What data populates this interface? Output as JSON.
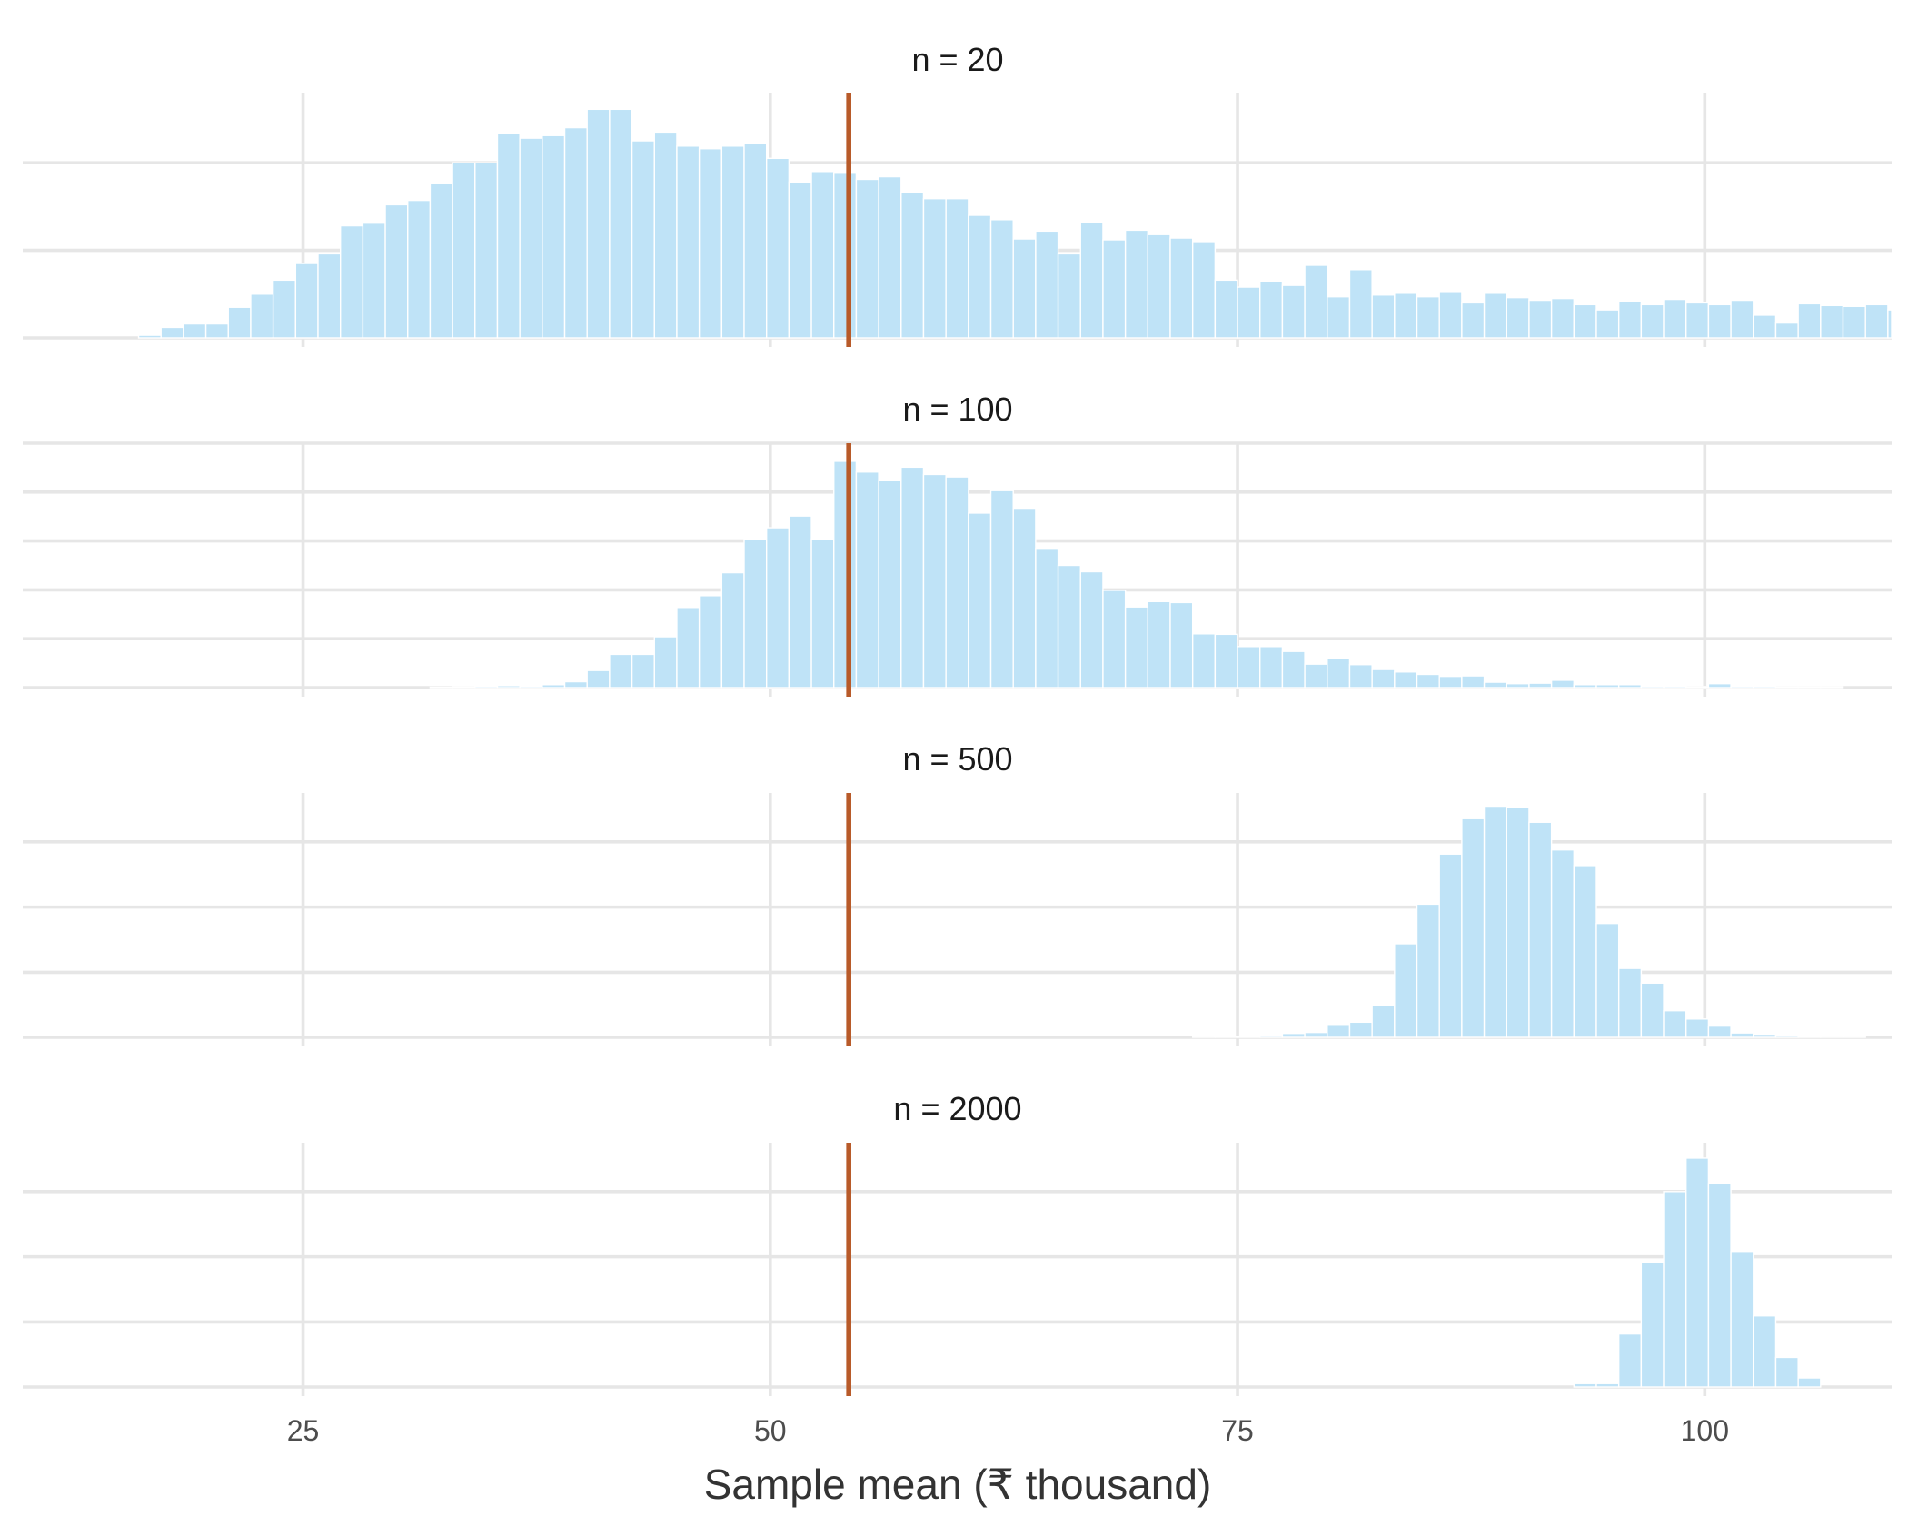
{
  "chart_data": {
    "type": "histogram",
    "layout": "facets-stacked",
    "xlabel": "Sample mean (₹ thousand)",
    "xlim": [
      10,
      110
    ],
    "x_ticks": [
      25,
      50,
      75,
      100
    ],
    "x_tick_labels": [
      "25",
      "50",
      "75",
      "100"
    ],
    "grid": true,
    "y_axis_labels_shown": false,
    "bin_width": 1.2,
    "bin_start": 16.2,
    "reference_line": {
      "x": 54.2,
      "color": "#b85a29"
    },
    "bar_color": "#bfe3f7",
    "panels": [
      {
        "title": "n = 20",
        "ylim": [
          0,
          280
        ],
        "y_gridlines": [
          0,
          100,
          200
        ],
        "counts": [
          3,
          12,
          16,
          16,
          35,
          50,
          66,
          85,
          96,
          128,
          131,
          152,
          157,
          176,
          200,
          200,
          234,
          228,
          231,
          240,
          261,
          261,
          225,
          235,
          219,
          216,
          219,
          222,
          205,
          178,
          190,
          188,
          181,
          184,
          166,
          159,
          159,
          140,
          135,
          113,
          122,
          96,
          132,
          112,
          123,
          118,
          114,
          110,
          66,
          58,
          64,
          60,
          83,
          47,
          78,
          49,
          51,
          47,
          52,
          40,
          51,
          46,
          43,
          45,
          38,
          32,
          42,
          38,
          44,
          40,
          38,
          43,
          26,
          17,
          39,
          37,
          36,
          38,
          32
        ]
      },
      {
        "title": "n = 100",
        "ylim": [
          0,
          500
        ],
        "y_gridlines": [
          0,
          100,
          200,
          300,
          400,
          500
        ],
        "counts": [
          0,
          0,
          0,
          0,
          0,
          0,
          0,
          0,
          0,
          0,
          0,
          0,
          0,
          1,
          2,
          3,
          4,
          3,
          6,
          12,
          35,
          68,
          68,
          104,
          164,
          188,
          235,
          303,
          327,
          351,
          304,
          463,
          441,
          425,
          451,
          436,
          431,
          357,
          403,
          367,
          285,
          250,
          237,
          199,
          165,
          176,
          174,
          110,
          109,
          84,
          84,
          74,
          48,
          60,
          47,
          37,
          32,
          27,
          23,
          24,
          11,
          8,
          9,
          15,
          6,
          6,
          6,
          3,
          3,
          2,
          8,
          3,
          3,
          2,
          2,
          2
        ]
      },
      {
        "title": "n = 500",
        "ylim": [
          0,
          1000
        ],
        "y_gridlines": [
          0,
          266,
          533,
          800
        ],
        "counts": [
          0,
          0,
          0,
          0,
          0,
          0,
          0,
          0,
          0,
          0,
          0,
          0,
          0,
          0,
          0,
          0,
          0,
          0,
          0,
          0,
          0,
          0,
          0,
          0,
          0,
          0,
          0,
          0,
          0,
          0,
          0,
          0,
          0,
          0,
          0,
          0,
          0,
          0,
          0,
          0,
          0,
          0,
          0,
          0,
          0,
          0,
          0,
          1,
          2,
          3,
          6,
          16,
          20,
          53,
          62,
          129,
          383,
          545,
          750,
          895,
          946,
          941,
          880,
          767,
          703,
          466,
          282,
          222,
          109,
          75,
          46,
          18,
          13,
          8,
          3,
          1,
          1
        ]
      },
      {
        "title": "n = 2000",
        "ylim": [
          0,
          1000
        ],
        "y_gridlines": [
          0,
          266,
          533,
          800
        ],
        "counts": [
          0,
          0,
          0,
          0,
          0,
          0,
          0,
          0,
          0,
          0,
          0,
          0,
          0,
          0,
          0,
          0,
          0,
          0,
          0,
          0,
          0,
          0,
          0,
          0,
          0,
          0,
          0,
          0,
          0,
          0,
          0,
          0,
          0,
          0,
          0,
          0,
          0,
          0,
          0,
          0,
          0,
          0,
          0,
          0,
          0,
          0,
          0,
          0,
          0,
          0,
          0,
          0,
          0,
          0,
          0,
          0,
          0,
          0,
          0,
          0,
          0,
          0,
          0,
          0,
          14,
          14,
          217,
          511,
          800,
          937,
          832,
          555,
          291,
          121,
          37
        ]
      }
    ]
  }
}
